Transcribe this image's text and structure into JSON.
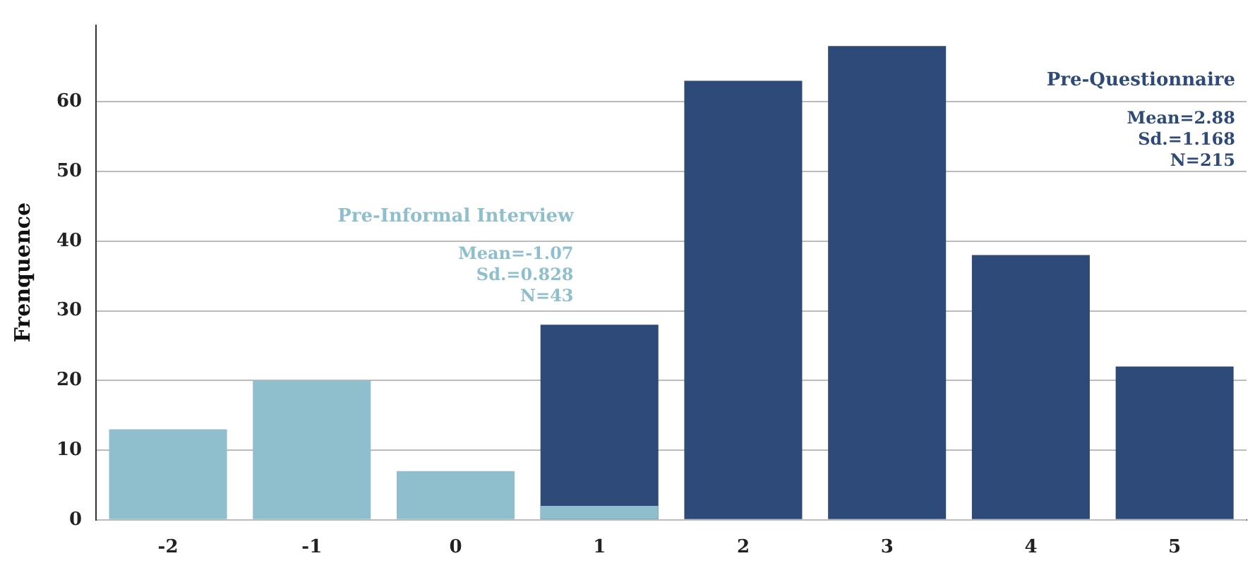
{
  "chart_data": {
    "type": "bar",
    "ylabel": "Frenquence",
    "categories": [
      "-2",
      "-1",
      "0",
      "1",
      "2",
      "3",
      "4",
      "5"
    ],
    "series": [
      {
        "name": "Pre-Informal Interview",
        "color": "#8fbfcc",
        "values": [
          13,
          20,
          7,
          2,
          null,
          null,
          null,
          null
        ]
      },
      {
        "name": "Pre-Questionnaire",
        "color": "#2e4a78",
        "values": [
          null,
          null,
          null,
          28,
          63,
          68,
          38,
          22
        ]
      }
    ],
    "annotations": [
      "Mean=-1.07\nSd.=0.828\nN=43",
      "Mean=2.88\nSd.=1.168\nN=215"
    ],
    "ylim": [
      0,
      71
    ],
    "yticks": [
      0,
      10,
      20,
      30,
      40,
      50,
      60
    ],
    "grid": "y",
    "legend": false
  }
}
